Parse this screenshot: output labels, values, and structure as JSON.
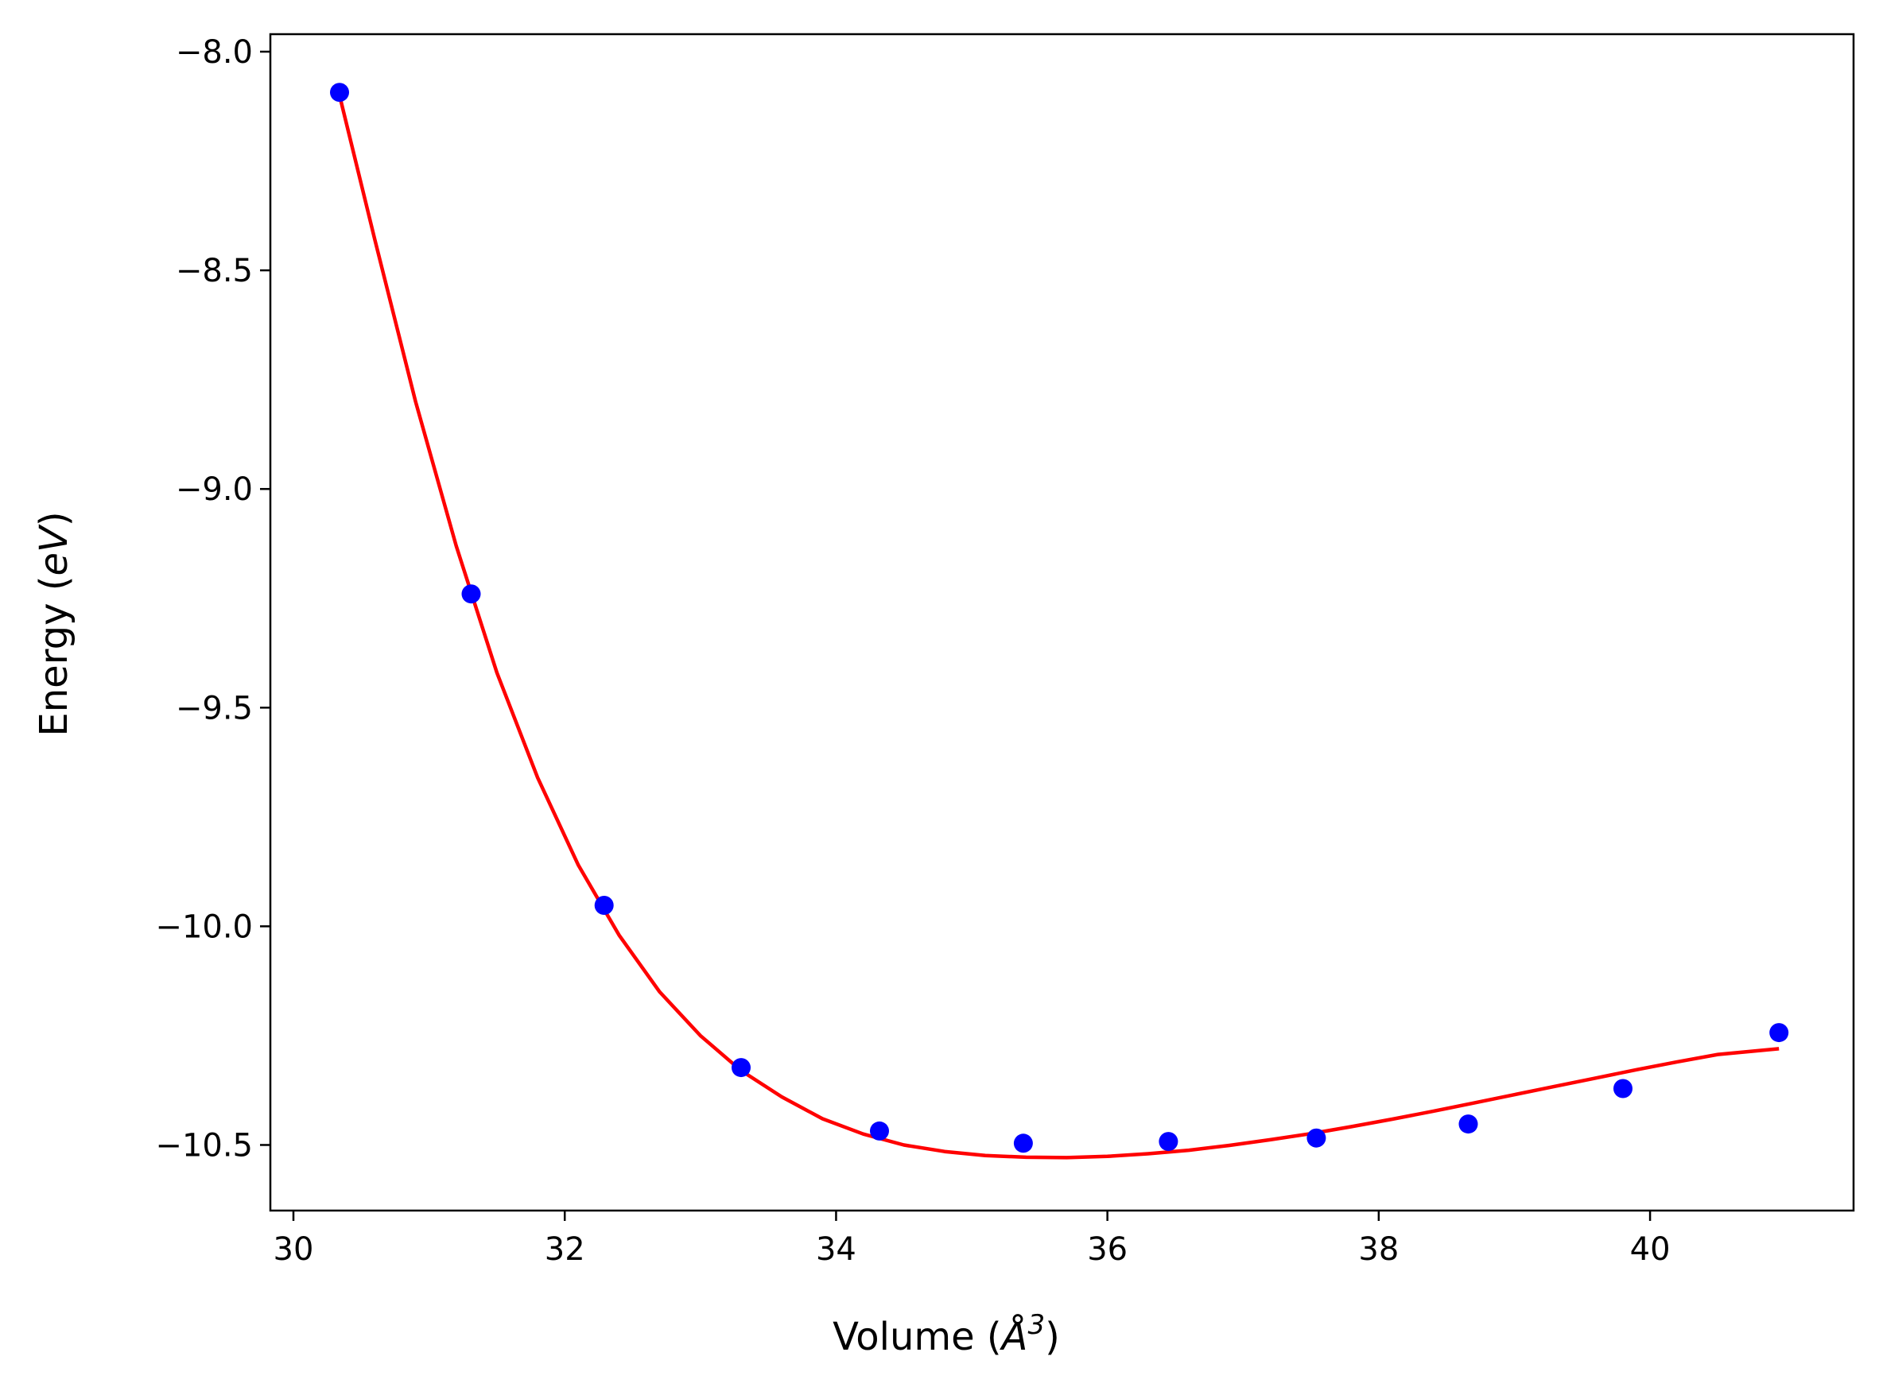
{
  "chart_data": {
    "type": "scatter",
    "title": "",
    "xlabel": "Volume (Å³)",
    "xlabel_parts": {
      "prefix": "Volume (",
      "unit": "Å",
      "exponent": "3",
      "suffix": ")"
    },
    "ylabel": "Energy (eV)",
    "ylabel_parts": {
      "prefix": "Energy (",
      "unit": "eV",
      "suffix": ")"
    },
    "xlim": [
      29.83,
      41.5
    ],
    "ylim": [
      -10.65,
      -7.96
    ],
    "grid": false,
    "legend": null,
    "xticks": [
      30,
      32,
      34,
      36,
      38,
      40
    ],
    "xtick_labels": [
      "30",
      "32",
      "34",
      "36",
      "38",
      "40"
    ],
    "yticks": [
      -8.0,
      -8.5,
      -9.0,
      -9.5,
      -10.0,
      -10.5
    ],
    "ytick_labels": [
      "−8.0",
      "−8.5",
      "−9.0",
      "−9.5",
      "−10.0",
      "−10.5"
    ],
    "series": [
      {
        "kind": "points",
        "color": "#0000ff",
        "x": [
          30.34,
          31.31,
          32.29,
          33.3,
          34.32,
          35.38,
          36.45,
          37.54,
          38.66,
          39.8,
          40.95
        ],
        "y": [
          -8.093,
          -9.24,
          -9.952,
          -10.323,
          -10.468,
          -10.496,
          -10.492,
          -10.484,
          -10.452,
          -10.371,
          -10.243
        ]
      },
      {
        "kind": "fit-line",
        "color": "#ff0000",
        "x": [
          30.34,
          30.6,
          30.9,
          31.2,
          31.5,
          31.8,
          32.1,
          32.4,
          32.7,
          33.0,
          33.3,
          33.6,
          33.9,
          34.2,
          34.5,
          34.8,
          35.1,
          35.4,
          35.7,
          36.0,
          36.3,
          36.6,
          36.9,
          37.2,
          37.5,
          37.8,
          38.1,
          38.4,
          38.7,
          39.0,
          39.3,
          39.6,
          39.9,
          40.2,
          40.5,
          40.95
        ],
        "y": [
          -8.1,
          -8.43,
          -8.8,
          -9.13,
          -9.42,
          -9.66,
          -9.86,
          -10.02,
          -10.15,
          -10.25,
          -10.33,
          -10.39,
          -10.44,
          -10.475,
          -10.5,
          -10.515,
          -10.524,
          -10.528,
          -10.529,
          -10.526,
          -10.52,
          -10.512,
          -10.501,
          -10.488,
          -10.474,
          -10.458,
          -10.441,
          -10.423,
          -10.404,
          -10.385,
          -10.366,
          -10.347,
          -10.328,
          -10.31,
          -10.293,
          -10.28
        ]
      }
    ]
  }
}
